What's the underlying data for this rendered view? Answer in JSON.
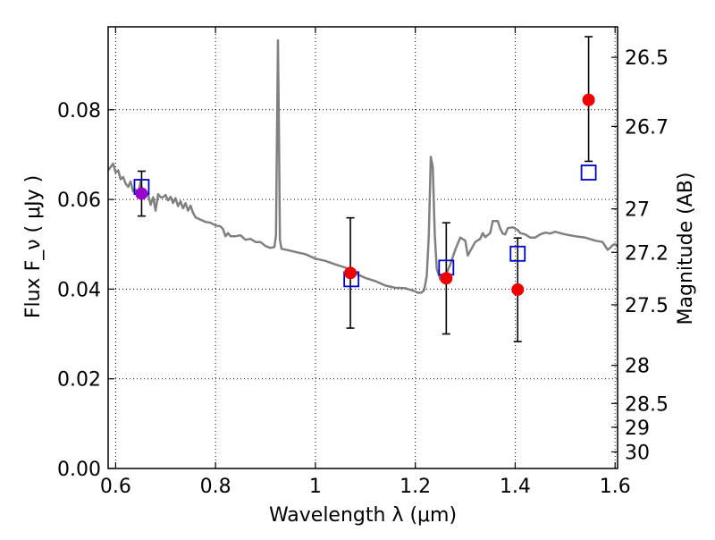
{
  "chart_data": {
    "type": "scatter",
    "xlabel": "Wavelength  λ (μm)",
    "ylabel": "Flux  F_ν  ( μJy )",
    "ylabel_right": "Magnitude (AB)",
    "xlim": [
      0.585,
      1.605
    ],
    "ylim": [
      0.0,
      0.0985
    ],
    "x_ticks": [
      0.6,
      0.8,
      1.0,
      1.2,
      1.4,
      1.6
    ],
    "x_tick_labels": [
      "0.6",
      "0.8",
      "1",
      "1.2",
      "1.4",
      "1.6"
    ],
    "y_ticks": [
      0.0,
      0.02,
      0.04,
      0.06,
      0.08
    ],
    "y_tick_labels": [
      "0.00",
      "0.02",
      "0.04",
      "0.06",
      "0.08"
    ],
    "right_ticks": [
      {
        "label": "26.5",
        "flux": 0.0917
      },
      {
        "label": "26.7",
        "flux": 0.0763
      },
      {
        "label": "27",
        "flux": 0.0579
      },
      {
        "label": "27.2",
        "flux": 0.0482
      },
      {
        "label": "27.5",
        "flux": 0.0365
      },
      {
        "label": "28",
        "flux": 0.023
      },
      {
        "label": "28.5",
        "flux": 0.0145
      },
      {
        "label": "29",
        "flux": 0.0092
      },
      {
        "label": "30",
        "flux": 0.0037
      }
    ],
    "grid": true,
    "model_spectrum": {
      "color": "#808080",
      "points": [
        [
          0.585,
          0.0665
        ],
        [
          0.595,
          0.068
        ],
        [
          0.6,
          0.066
        ],
        [
          0.605,
          0.0665
        ],
        [
          0.61,
          0.0645
        ],
        [
          0.615,
          0.065
        ],
        [
          0.62,
          0.0635
        ],
        [
          0.625,
          0.0628
        ],
        [
          0.63,
          0.064
        ],
        [
          0.635,
          0.0618
        ],
        [
          0.64,
          0.0622
        ],
        [
          0.645,
          0.0608
        ],
        [
          0.65,
          0.064
        ],
        [
          0.655,
          0.0605
        ],
        [
          0.66,
          0.0612
        ],
        [
          0.665,
          0.0612
        ],
        [
          0.67,
          0.0588
        ],
        [
          0.675,
          0.0605
        ],
        [
          0.68,
          0.0575
        ],
        [
          0.685,
          0.0612
        ],
        [
          0.69,
          0.0605
        ],
        [
          0.695,
          0.0605
        ],
        [
          0.7,
          0.061
        ],
        [
          0.705,
          0.0598
        ],
        [
          0.71,
          0.0606
        ],
        [
          0.715,
          0.0592
        ],
        [
          0.72,
          0.0603
        ],
        [
          0.725,
          0.0585
        ],
        [
          0.73,
          0.0596
        ],
        [
          0.735,
          0.058
        ],
        [
          0.74,
          0.0592
        ],
        [
          0.745,
          0.0575
        ],
        [
          0.75,
          0.0586
        ],
        [
          0.755,
          0.057
        ],
        [
          0.76,
          0.056
        ],
        [
          0.77,
          0.0555
        ],
        [
          0.78,
          0.055
        ],
        [
          0.79,
          0.0548
        ],
        [
          0.8,
          0.0542
        ],
        [
          0.81,
          0.054
        ],
        [
          0.815,
          0.0534
        ],
        [
          0.82,
          0.0518
        ],
        [
          0.825,
          0.0525
        ],
        [
          0.83,
          0.0518
        ],
        [
          0.84,
          0.0518
        ],
        [
          0.85,
          0.052
        ],
        [
          0.86,
          0.051
        ],
        [
          0.87,
          0.0512
        ],
        [
          0.88,
          0.0505
        ],
        [
          0.89,
          0.0505
        ],
        [
          0.9,
          0.0496
        ],
        [
          0.91,
          0.0492
        ],
        [
          0.918,
          0.0494
        ],
        [
          0.921,
          0.052
        ],
        [
          0.923,
          0.074
        ],
        [
          0.925,
          0.0955
        ],
        [
          0.927,
          0.075
        ],
        [
          0.929,
          0.051
        ],
        [
          0.932,
          0.049
        ],
        [
          0.945,
          0.0487
        ],
        [
          0.96,
          0.0483
        ],
        [
          0.98,
          0.0478
        ],
        [
          1.0,
          0.0468
        ],
        [
          1.02,
          0.0463
        ],
        [
          1.04,
          0.0455
        ],
        [
          1.06,
          0.0448
        ],
        [
          1.08,
          0.0435
        ],
        [
          1.1,
          0.0425
        ],
        [
          1.12,
          0.0418
        ],
        [
          1.14,
          0.0408
        ],
        [
          1.16,
          0.0403
        ],
        [
          1.18,
          0.0402
        ],
        [
          1.195,
          0.0397
        ],
        [
          1.205,
          0.0392
        ],
        [
          1.212,
          0.0392
        ],
        [
          1.218,
          0.0398
        ],
        [
          1.223,
          0.043
        ],
        [
          1.227,
          0.052
        ],
        [
          1.231,
          0.0695
        ],
        [
          1.235,
          0.0672
        ],
        [
          1.239,
          0.052
        ],
        [
          1.243,
          0.0445
        ],
        [
          1.25,
          0.0422
        ],
        [
          1.26,
          0.0428
        ],
        [
          1.27,
          0.0455
        ],
        [
          1.28,
          0.0488
        ],
        [
          1.29,
          0.0515
        ],
        [
          1.3,
          0.0508
        ],
        [
          1.305,
          0.0475
        ],
        [
          1.31,
          0.0485
        ],
        [
          1.32,
          0.0505
        ],
        [
          1.33,
          0.0512
        ],
        [
          1.335,
          0.0525
        ],
        [
          1.34,
          0.0516
        ],
        [
          1.35,
          0.0525
        ],
        [
          1.355,
          0.0552
        ],
        [
          1.365,
          0.0552
        ],
        [
          1.37,
          0.0535
        ],
        [
          1.375,
          0.0524
        ],
        [
          1.38,
          0.0522
        ],
        [
          1.385,
          0.0536
        ],
        [
          1.395,
          0.0538
        ],
        [
          1.405,
          0.0532
        ],
        [
          1.41,
          0.0525
        ],
        [
          1.42,
          0.0522
        ],
        [
          1.43,
          0.0515
        ],
        [
          1.44,
          0.0515
        ],
        [
          1.45,
          0.0522
        ],
        [
          1.46,
          0.0526
        ],
        [
          1.47,
          0.0524
        ],
        [
          1.48,
          0.0528
        ],
        [
          1.49,
          0.0525
        ],
        [
          1.5,
          0.0522
        ],
        [
          1.52,
          0.0518
        ],
        [
          1.54,
          0.0515
        ],
        [
          1.56,
          0.0508
        ],
        [
          1.575,
          0.0505
        ],
        [
          1.585,
          0.0488
        ],
        [
          1.59,
          0.0492
        ],
        [
          1.595,
          0.0498
        ],
        [
          1.6,
          0.05
        ],
        [
          1.605,
          0.0495
        ]
      ]
    },
    "model_photometry": {
      "color": "#0000cc",
      "marker": "open-square",
      "points": [
        {
          "x": 0.652,
          "y": 0.0628
        },
        {
          "x": 1.072,
          "y": 0.0422
        },
        {
          "x": 1.262,
          "y": 0.0448
        },
        {
          "x": 1.405,
          "y": 0.0479
        },
        {
          "x": 1.547,
          "y": 0.066
        }
      ]
    },
    "observed_photometry": {
      "color": "#ee0000",
      "marker": "filled-circle",
      "points": [
        {
          "x": 1.07,
          "y": 0.0436,
          "yerr_low": 0.0313,
          "yerr_high": 0.0559
        },
        {
          "x": 1.262,
          "y": 0.0424,
          "yerr_low": 0.03,
          "yerr_high": 0.0548
        },
        {
          "x": 1.405,
          "y": 0.0399,
          "yerr_low": 0.0283,
          "yerr_high": 0.0514
        },
        {
          "x": 1.547,
          "y": 0.0822,
          "yerr_low": 0.0685,
          "yerr_high": 0.0963
        }
      ]
    },
    "highlight_photometry": {
      "color": "#9900cc",
      "marker": "filled-circle",
      "points": [
        {
          "x": 0.652,
          "y": 0.0613,
          "yerr_low": 0.0563,
          "yerr_high": 0.0663
        }
      ]
    }
  }
}
